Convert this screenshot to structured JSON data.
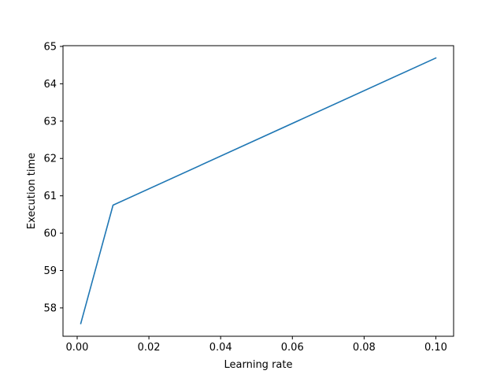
{
  "chart_data": {
    "type": "line",
    "title": "",
    "xlabel": "Learning rate",
    "ylabel": "Execution time",
    "xlim": [
      -0.00395,
      0.10495
    ],
    "ylim": [
      57.24,
      65.02
    ],
    "xticks": [
      0.0,
      0.02,
      0.04,
      0.06,
      0.08,
      0.1
    ],
    "xtick_labels": [
      "0.00",
      "0.02",
      "0.04",
      "0.06",
      "0.08",
      "0.10"
    ],
    "yticks": [
      58,
      59,
      60,
      61,
      62,
      63,
      64,
      65
    ],
    "ytick_labels": [
      "58",
      "59",
      "60",
      "61",
      "62",
      "63",
      "64",
      "65"
    ],
    "grid": false,
    "series": [
      {
        "color": "#1f77b4",
        "x": [
          0.001,
          0.01,
          0.1
        ],
        "y": [
          57.58,
          60.75,
          64.69
        ]
      }
    ]
  }
}
